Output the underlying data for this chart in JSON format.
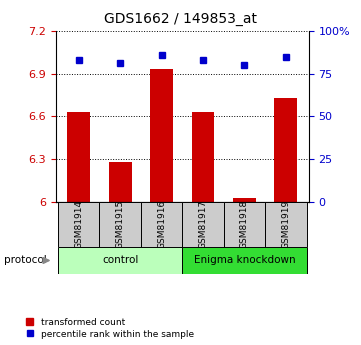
{
  "title": "GDS1662 / 149853_at",
  "samples": [
    "GSM81914",
    "GSM81915",
    "GSM81916",
    "GSM81917",
    "GSM81918",
    "GSM81919"
  ],
  "red_values": [
    6.63,
    6.28,
    6.93,
    6.63,
    6.03,
    6.73
  ],
  "blue_values": [
    83,
    81,
    86,
    83,
    80,
    85
  ],
  "ylim_left": [
    6.0,
    7.2
  ],
  "ylim_right": [
    0,
    100
  ],
  "yticks_left": [
    6.0,
    6.3,
    6.6,
    6.9,
    7.2
  ],
  "ytick_labels_left": [
    "6",
    "6.3",
    "6.6",
    "6.9",
    "7.2"
  ],
  "yticks_right": [
    0,
    25,
    50,
    75,
    100
  ],
  "ytick_labels_right": [
    "0",
    "25",
    "50",
    "75",
    "100%"
  ],
  "bar_color": "#cc0000",
  "dot_color": "#0000cc",
  "protocol_groups": [
    {
      "label": "control",
      "indices": [
        0,
        1,
        2
      ],
      "color": "#bbffbb"
    },
    {
      "label": "Enigma knockdown",
      "indices": [
        3,
        4,
        5
      ],
      "color": "#33dd33"
    }
  ],
  "protocol_label": "protocol",
  "title_fontsize": 10,
  "tick_fontsize": 8,
  "sample_bg_color": "#cccccc",
  "bar_width": 0.55,
  "grid_color": "#000000"
}
